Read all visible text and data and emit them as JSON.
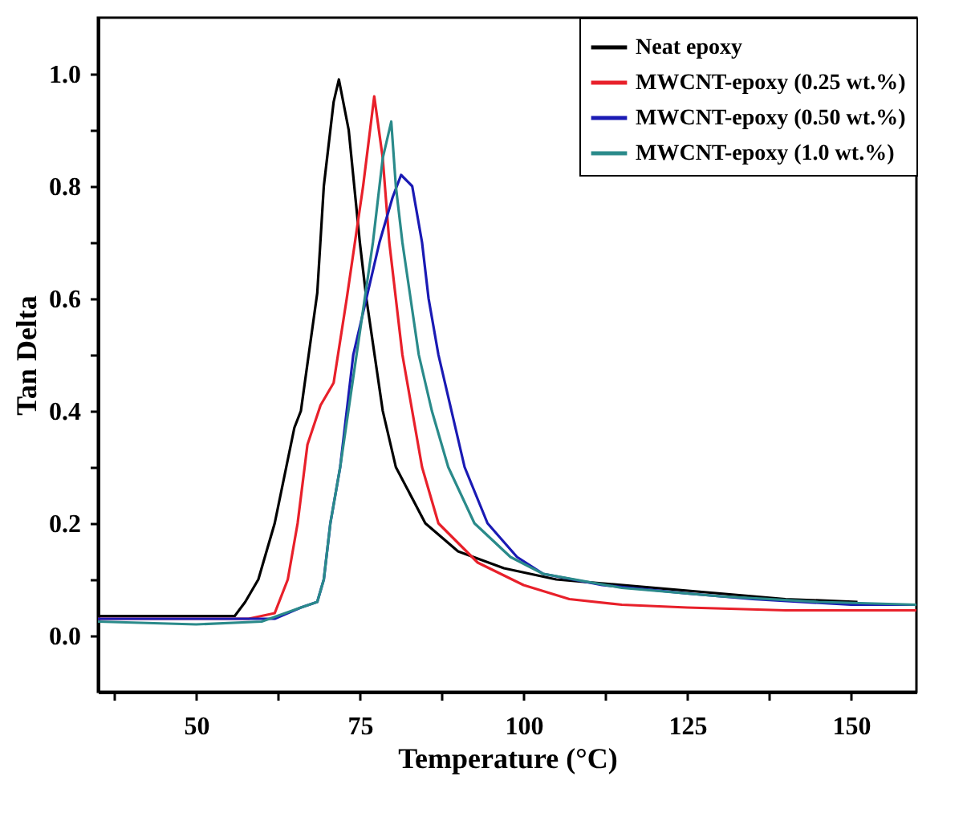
{
  "chart_data": {
    "type": "line",
    "xlabel": "Temperature (°C)",
    "ylabel": "Tan Delta",
    "xlim": [
      35,
      160
    ],
    "ylim": [
      -0.1,
      1.1
    ],
    "xticks": [
      {
        "value": 37.5,
        "label": null
      },
      50,
      {
        "value": 62.5,
        "label": null
      },
      75,
      {
        "value": 87.5,
        "label": null
      },
      100,
      {
        "value": 112.5,
        "label": null
      },
      125,
      {
        "value": 137.5,
        "label": null
      },
      150
    ],
    "yticks": [
      {
        "value": 0,
        "label": "0.0"
      },
      {
        "value": 0.1,
        "label": null
      },
      0.2,
      {
        "value": 0.3,
        "label": null
      },
      0.4,
      {
        "value": 0.5,
        "label": null
      },
      0.6,
      {
        "value": 0.7,
        "label": null
      },
      0.8,
      {
        "value": 0.9,
        "label": null
      },
      {
        "value": 1.0,
        "label": "1.0"
      }
    ],
    "grid": false,
    "legend": "top right",
    "marker": "none",
    "line_style": "solid",
    "series": [
      {
        "name": "Neat epoxy",
        "color": "#000000",
        "x": [
          35,
          45,
          55.9,
          57.5,
          59.5,
          62,
          65,
          66,
          68.5,
          69.5,
          71,
          71.8,
          73.3,
          75,
          76,
          78.5,
          80.5,
          85,
          90,
          97,
          105,
          140,
          151
        ],
        "values": [
          0.035,
          0.035,
          0.035,
          0.06,
          0.1,
          0.2,
          0.37,
          0.4,
          0.61,
          0.8,
          0.95,
          0.99,
          0.9,
          0.7,
          0.6,
          0.4,
          0.3,
          0.2,
          0.15,
          0.12,
          0.1,
          0.065,
          0.06
        ]
      },
      {
        "name": "MWCNT-epoxy (0.25 wt.%)",
        "color": "#e8202a",
        "x": [
          35,
          58,
          62,
          64,
          65.5,
          67,
          69,
          71,
          73,
          75.5,
          77.2,
          78.5,
          79.5,
          81.5,
          84.5,
          87,
          93,
          100,
          107,
          115,
          125,
          140,
          160
        ],
        "values": [
          0.03,
          0.03,
          0.04,
          0.1,
          0.2,
          0.34,
          0.41,
          0.45,
          0.6,
          0.8,
          0.96,
          0.85,
          0.7,
          0.5,
          0.3,
          0.2,
          0.13,
          0.09,
          0.065,
          0.055,
          0.05,
          0.045,
          0.045
        ]
      },
      {
        "name": "MWCNT-epoxy (0.50 wt.%)",
        "color": "#1a1ab4",
        "x": [
          35,
          50,
          62,
          66,
          68.5,
          69.5,
          70.5,
          72,
          73,
          74,
          76,
          78,
          80,
          81.3,
          83,
          84.5,
          85.5,
          87,
          89,
          91,
          94.5,
          99,
          103,
          112,
          125,
          135,
          150,
          160
        ],
        "values": [
          0.03,
          0.03,
          0.03,
          0.05,
          0.06,
          0.1,
          0.2,
          0.3,
          0.4,
          0.5,
          0.6,
          0.7,
          0.78,
          0.82,
          0.8,
          0.7,
          0.6,
          0.5,
          0.4,
          0.3,
          0.2,
          0.14,
          0.11,
          0.09,
          0.075,
          0.065,
          0.055,
          0.055
        ]
      },
      {
        "name": "MWCNT-epoxy (1.0 wt.%)",
        "color": "#2a8a8a",
        "x": [
          35,
          50,
          60,
          66,
          68.5,
          69.5,
          70.5,
          72,
          74.5,
          77,
          78.5,
          79.8,
          80.5,
          81.5,
          84,
          86,
          88.5,
          92.5,
          98,
          103,
          115,
          130,
          145,
          160
        ],
        "values": [
          0.025,
          0.02,
          0.025,
          0.05,
          0.06,
          0.1,
          0.2,
          0.3,
          0.5,
          0.7,
          0.85,
          0.915,
          0.8,
          0.7,
          0.5,
          0.4,
          0.3,
          0.2,
          0.14,
          0.11,
          0.085,
          0.07,
          0.06,
          0.055
        ]
      }
    ]
  }
}
